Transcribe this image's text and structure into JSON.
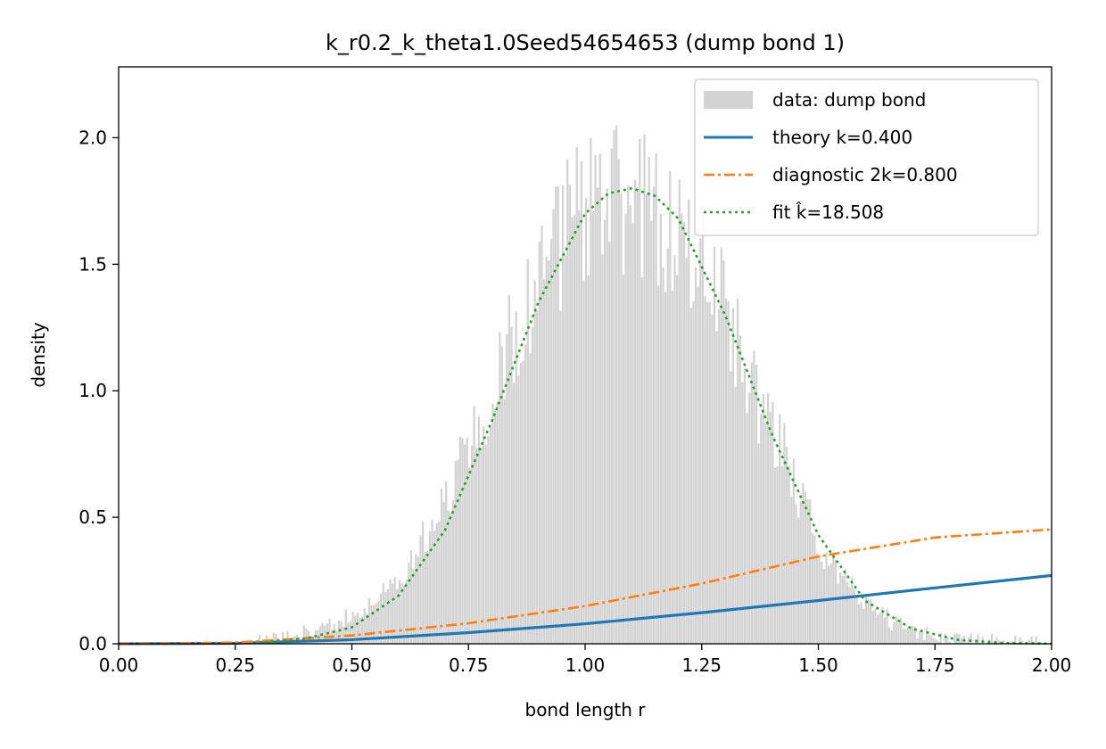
{
  "chart_data": {
    "type": "histogram_with_lines",
    "title": "k_r0.2_k_theta1.0Seed54654653 (dump bond 1)",
    "xlabel": "bond length r",
    "ylabel": "density",
    "xlim": [
      0.0,
      2.0
    ],
    "ylim": [
      0.0,
      2.28
    ],
    "x_ticks": [
      0.0,
      0.25,
      0.5,
      0.75,
      1.0,
      1.25,
      1.5,
      1.75,
      2.0
    ],
    "x_tick_labels": [
      "0.00",
      "0.25",
      "0.50",
      "0.75",
      "1.00",
      "1.25",
      "1.50",
      "1.75",
      "2.00"
    ],
    "y_ticks": [
      0.0,
      0.5,
      1.0,
      1.5,
      2.0
    ],
    "y_tick_labels": [
      "0.0",
      "0.5",
      "1.0",
      "1.5",
      "2.0"
    ],
    "legend_position": "top-right",
    "grid": false,
    "histogram": {
      "name": "data: dump bond",
      "color": "#d3d3d3",
      "bin_width": 0.005,
      "range": [
        0.0,
        2.0
      ],
      "envelope_r": [
        0.3,
        0.4,
        0.5,
        0.6,
        0.7,
        0.8,
        0.9,
        1.0,
        1.1,
        1.2,
        1.3,
        1.4,
        1.5,
        1.6,
        1.7,
        1.8,
        1.9,
        2.0
      ],
      "envelope_density": [
        0.01,
        0.04,
        0.1,
        0.25,
        0.55,
        1.0,
        1.45,
        1.75,
        1.8,
        1.65,
        1.3,
        0.85,
        0.4,
        0.15,
        0.05,
        0.02,
        0.01,
        0.0
      ]
    },
    "series": [
      {
        "name": "theory k=0.400",
        "color": "#1f77b4",
        "style": "solid",
        "x": [
          0.0,
          0.25,
          0.5,
          0.75,
          1.0,
          1.25,
          1.5,
          1.75,
          2.0
        ],
        "y": [
          0.0,
          0.002,
          0.016,
          0.044,
          0.079,
          0.123,
          0.171,
          0.221,
          0.27
        ]
      },
      {
        "name": "diagnostic 2k=0.800",
        "color": "#ff7f0e",
        "style": "dashdot",
        "x": [
          0.0,
          0.25,
          0.5,
          0.75,
          1.0,
          1.25,
          1.5,
          1.75,
          2.0
        ],
        "y": [
          0.0,
          0.005,
          0.033,
          0.081,
          0.149,
          0.238,
          0.345,
          0.42,
          0.452
        ]
      },
      {
        "name": "fit k̂=18.508",
        "color": "#2ca02c",
        "style": "dotted",
        "x": [
          0.3,
          0.4,
          0.5,
          0.6,
          0.7,
          0.8,
          0.9,
          1.0,
          1.05,
          1.1,
          1.15,
          1.2,
          1.3,
          1.4,
          1.5,
          1.6,
          1.7,
          1.8,
          1.9,
          2.0
        ],
        "y": [
          0.004,
          0.02,
          0.065,
          0.19,
          0.45,
          0.88,
          1.35,
          1.7,
          1.78,
          1.8,
          1.77,
          1.68,
          1.3,
          0.83,
          0.43,
          0.17,
          0.06,
          0.015,
          0.003,
          0.0005
        ]
      }
    ]
  }
}
